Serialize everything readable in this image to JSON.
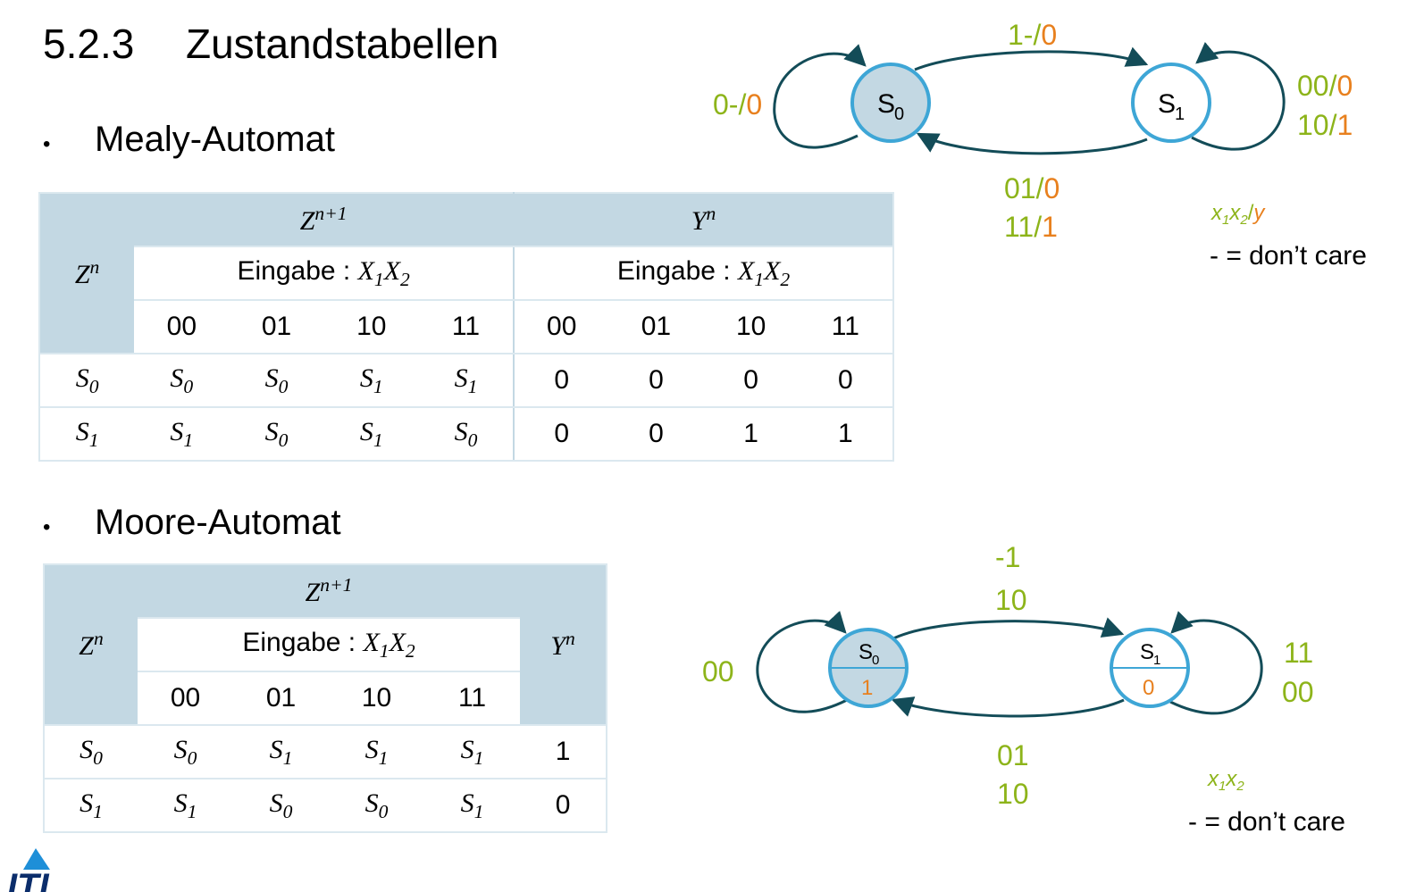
{
  "title": {
    "number": "5.2.3",
    "text": "Zustandstabellen"
  },
  "mealy": {
    "bullet": "•",
    "heading": "Mealy-Automat",
    "table": {
      "row_header": "Z^n",
      "next_state_header": "Z^{n+1}",
      "output_header": "Y^n",
      "input_label": "Eingabe : X1X2",
      "inputs": [
        "00",
        "01",
        "10",
        "11"
      ],
      "rows": [
        {
          "state": "S0",
          "next": [
            "S0",
            "S0",
            "S1",
            "S1"
          ],
          "out": [
            "0",
            "0",
            "0",
            "0"
          ]
        },
        {
          "state": "S1",
          "next": [
            "S1",
            "S0",
            "S1",
            "S0"
          ],
          "out": [
            "0",
            "0",
            "1",
            "1"
          ]
        }
      ]
    },
    "diagram": {
      "states": [
        {
          "id": "S0",
          "label": "S",
          "sub": "0",
          "fill": "#c3d8e3"
        },
        {
          "id": "S1",
          "label": "S",
          "sub": "1",
          "fill": "#ffffff"
        }
      ],
      "edges": [
        {
          "from": "S0",
          "to": "S0",
          "labels": [
            {
              "input": "0-",
              "output": "0"
            }
          ]
        },
        {
          "from": "S0",
          "to": "S1",
          "labels": [
            {
              "input": "1-",
              "output": "0"
            }
          ]
        },
        {
          "from": "S1",
          "to": "S0",
          "labels": [
            {
              "input": "01",
              "output": "0"
            },
            {
              "input": "11",
              "output": "1"
            }
          ]
        },
        {
          "from": "S1",
          "to": "S1",
          "labels": [
            {
              "input": "00",
              "output": "0"
            },
            {
              "input": "10",
              "output": "1"
            }
          ]
        }
      ],
      "legend": {
        "format": "x1x2/y",
        "dont_care": "- = don’t care"
      }
    }
  },
  "moore": {
    "bullet": "•",
    "heading": "Moore-Automat",
    "table": {
      "row_header": "Z^n",
      "next_state_header": "Z^{n+1}",
      "output_header": "Y^n",
      "input_label": "Eingabe : X1X2",
      "inputs": [
        "00",
        "01",
        "10",
        "11"
      ],
      "rows": [
        {
          "state": "S0",
          "next": [
            "S0",
            "S1",
            "S1",
            "S1"
          ],
          "out": "1"
        },
        {
          "state": "S1",
          "next": [
            "S1",
            "S0",
            "S0",
            "S1"
          ],
          "out": "0"
        }
      ]
    },
    "diagram": {
      "states": [
        {
          "id": "S0",
          "label": "S",
          "sub": "0",
          "output": "1",
          "fill": "#c3d8e3"
        },
        {
          "id": "S1",
          "label": "S",
          "sub": "1",
          "output": "0",
          "fill": "#ffffff"
        }
      ],
      "edges": [
        {
          "from": "S0",
          "to": "S0",
          "labels": [
            "00"
          ]
        },
        {
          "from": "S0",
          "to": "S1",
          "labels": [
            "-1",
            "10"
          ]
        },
        {
          "from": "S1",
          "to": "S0",
          "labels": [
            "01",
            "10"
          ]
        },
        {
          "from": "S1",
          "to": "S1",
          "labels": [
            "11",
            "00"
          ]
        }
      ],
      "legend": {
        "format": "x1x2",
        "dont_care": "- = don’t care"
      }
    }
  },
  "colors": {
    "input_green": "#8db41a",
    "output_orange": "#e8801e",
    "edge": "#134c58",
    "state_stroke": "#3ea6d6",
    "header_fill": "#c3d8e3",
    "logo_blue": "#1e8fd8"
  },
  "logo": {
    "text": "ITI"
  }
}
